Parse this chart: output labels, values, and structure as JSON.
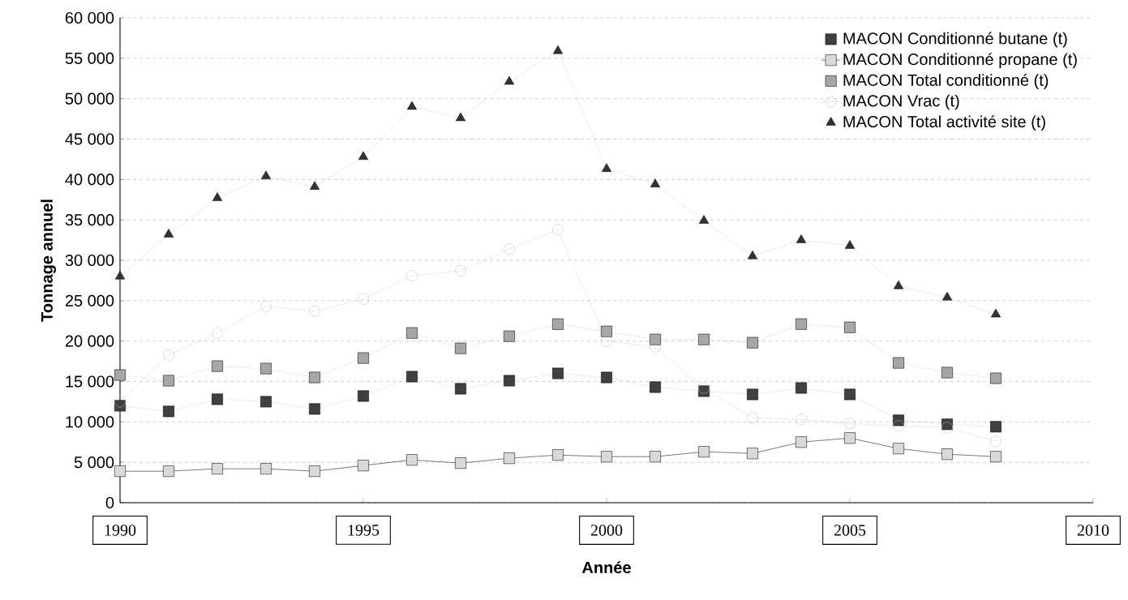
{
  "chart_data": {
    "type": "line",
    "xlabel": "Année",
    "ylabel": "Tonnage annuel",
    "x": [
      1990,
      1991,
      1992,
      1993,
      1994,
      1995,
      1996,
      1997,
      1998,
      1999,
      2000,
      2001,
      2002,
      2003,
      2004,
      2005,
      2006,
      2007,
      2008
    ],
    "series": [
      {
        "name": "MACON Conditionné butane (t)",
        "color": "#404040",
        "marker": "square",
        "line_style": "dotted",
        "values": [
          12000,
          11300,
          12800,
          12500,
          11600,
          13200,
          15600,
          14100,
          15100,
          16000,
          15500,
          14300,
          13800,
          13400,
          14200,
          13400,
          10200,
          9700,
          9400
        ]
      },
      {
        "name": "MACON Conditionné propane (t)",
        "color": "#d9d9d9",
        "marker": "square",
        "line_style": "solid",
        "values": [
          3900,
          3900,
          4200,
          4200,
          3900,
          4600,
          5300,
          4900,
          5500,
          5900,
          5700,
          5700,
          6300,
          6100,
          7500,
          8000,
          6700,
          6000,
          5700
        ]
      },
      {
        "name": "MACON Total conditionné (t)",
        "color": "#a6a6a6",
        "marker": "square",
        "line_style": "dotted",
        "values": [
          15800,
          15100,
          16900,
          16600,
          15500,
          17900,
          21000,
          19100,
          20600,
          22100,
          21200,
          20200,
          20200,
          19800,
          22100,
          21700,
          17300,
          16100,
          15400
        ]
      },
      {
        "name": "MACON Vrac (t)",
        "color": "#bfbfbf",
        "marker": "circle",
        "line_style": "dotted",
        "values": [
          12500,
          18300,
          21000,
          24300,
          23700,
          25200,
          28100,
          28700,
          31400,
          33800,
          20000,
          19300,
          14200,
          10500,
          10300,
          9800,
          9500,
          9300,
          7600
        ]
      },
      {
        "name": "MACON Total activité site (t)",
        "color": "#333333",
        "marker": "triangle",
        "line_style": "dotted",
        "values": [
          28000,
          33200,
          37700,
          40400,
          39100,
          42800,
          49000,
          47600,
          52100,
          55900,
          41300,
          39400,
          34900,
          30500,
          32500,
          31800,
          26800,
          25400,
          23300
        ]
      }
    ],
    "xlim": [
      1990,
      2010
    ],
    "xticks": [
      1990,
      1995,
      2000,
      2005,
      2010
    ],
    "ylim": [
      0,
      60000
    ],
    "yticks": [
      0,
      {
        "value": 5000,
        "label": "5 000"
      },
      {
        "value": 10000,
        "label": "10 000"
      },
      {
        "value": 15000,
        "label": "15 000"
      },
      {
        "value": 20000,
        "label": "20 000"
      },
      {
        "value": 25000,
        "label": "25 000"
      },
      {
        "value": 30000,
        "label": "30 000"
      },
      {
        "value": 35000,
        "label": "35 000"
      },
      {
        "value": 40000,
        "label": "40 000"
      },
      {
        "value": 45000,
        "label": "45 000"
      },
      {
        "value": 50000,
        "label": "50 000"
      },
      {
        "value": 55000,
        "label": "55 000"
      },
      {
        "value": 60000,
        "label": "60 000"
      }
    ],
    "grid": "y",
    "legend": "top right"
  }
}
